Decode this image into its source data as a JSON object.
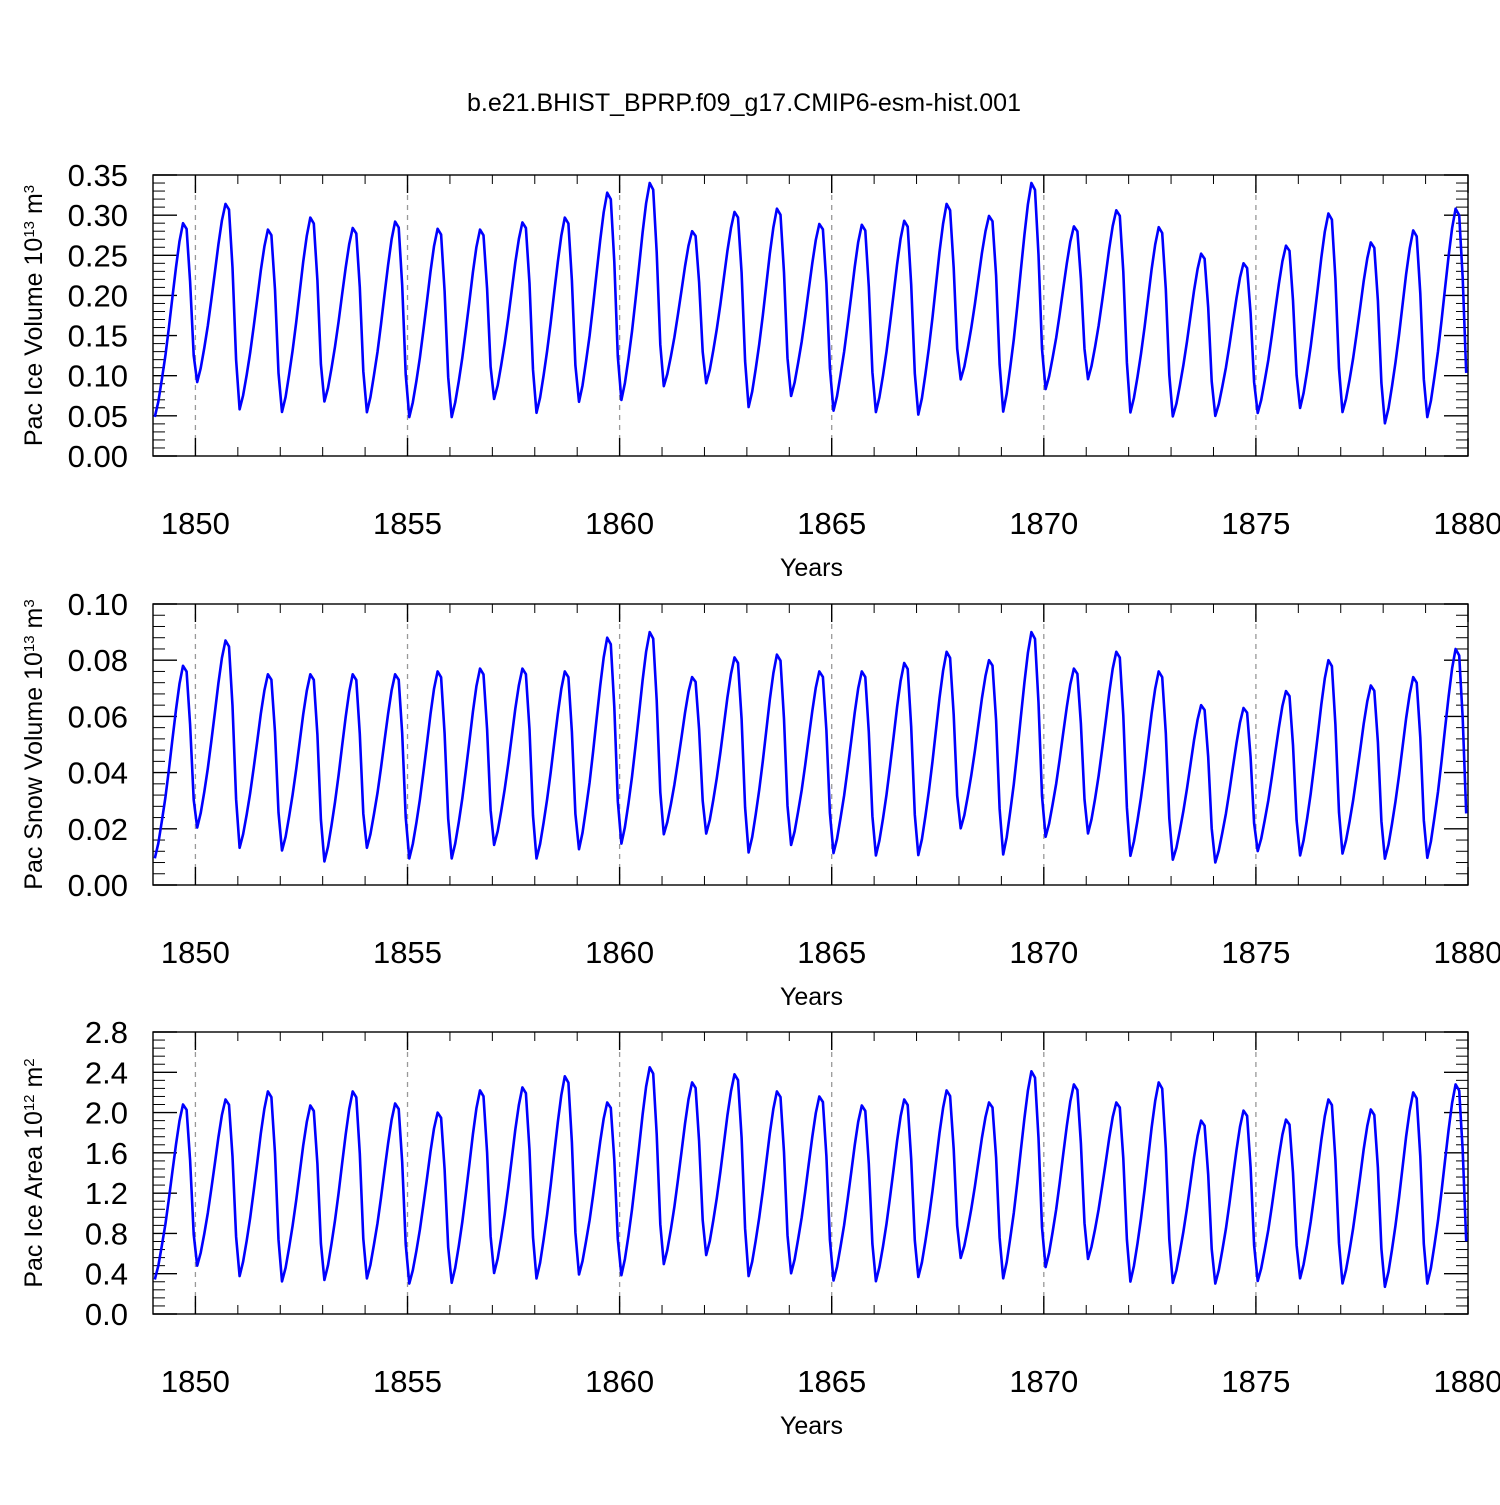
{
  "title": "b.e21.BHIST_BPRP.f09_g17.CMIP6-esm-hist.001",
  "colors": {
    "line": "#0000ff",
    "grid": "#999999",
    "axis": "#000000"
  },
  "chart_data": [
    {
      "type": "line",
      "title": "b.e21.BHIST_BPRP.f09_g17.CMIP6-esm-hist.001",
      "xlabel": "Years",
      "ylabel": {
        "prefix": "Pac Ice Volume 10",
        "exp": "13",
        "mid": " m",
        "unit_exp": "3"
      },
      "xlim": [
        1849,
        1880
      ],
      "x_ticks": [
        1850,
        1855,
        1860,
        1865,
        1870,
        1875,
        1880
      ],
      "x_tick_labels": [
        "1850",
        "1855",
        "1860",
        "1865",
        "1870",
        "1875",
        "1880"
      ],
      "ylim": [
        0,
        0.35
      ],
      "y_ticks": [
        0,
        0.05,
        0.1,
        0.15,
        0.2,
        0.25,
        0.3,
        0.35
      ],
      "y_tick_labels": [
        "0.00",
        "0.05",
        "0.10",
        "0.15",
        "0.20",
        "0.25",
        "0.30",
        "0.35"
      ],
      "grid": "vertical dashed at major x ticks",
      "series": [
        {
          "x_start": 1849,
          "step": "monthly",
          "peaks": [
            0.29,
            0.314,
            0.282,
            0.297,
            0.284,
            0.292,
            0.283,
            0.282,
            0.291,
            0.297,
            0.328,
            0.34,
            0.28,
            0.304,
            0.308,
            0.289,
            0.288,
            0.293,
            0.314,
            0.299,
            0.34,
            0.286,
            0.306,
            0.285,
            0.252,
            0.24,
            0.262,
            0.302,
            0.266,
            0.281,
            0.308
          ],
          "troughs": [
            0.04,
            0.084,
            0.05,
            0.046,
            0.06,
            0.046,
            0.04,
            0.04,
            0.063,
            0.045,
            0.058,
            0.06,
            0.08,
            0.083,
            0.052,
            0.067,
            0.048,
            0.046,
            0.042,
            0.088,
            0.045,
            0.076,
            0.088,
            0.046,
            0.042,
            0.043,
            0.046,
            0.051,
            0.047,
            0.032,
            0.039
          ]
        }
      ]
    },
    {
      "type": "line",
      "xlabel": "Years",
      "ylabel": {
        "prefix": "Pac Snow Volume 10",
        "exp": "13",
        "mid": " m",
        "unit_exp": "3"
      },
      "xlim": [
        1849,
        1880
      ],
      "x_ticks": [
        1850,
        1855,
        1860,
        1865,
        1870,
        1875,
        1880
      ],
      "x_tick_labels": [
        "1850",
        "1855",
        "1860",
        "1865",
        "1870",
        "1875",
        "1880"
      ],
      "ylim": [
        0,
        0.1
      ],
      "y_ticks": [
        0,
        0.02,
        0.04,
        0.06,
        0.08,
        0.1
      ],
      "y_tick_labels": [
        "0.00",
        "0.02",
        "0.04",
        "0.06",
        "0.08",
        "0.10"
      ],
      "grid": "vertical dashed at major x ticks",
      "series": [
        {
          "x_start": 1849,
          "step": "monthly",
          "peaks": [
            0.078,
            0.087,
            0.075,
            0.075,
            0.075,
            0.075,
            0.076,
            0.077,
            0.077,
            0.076,
            0.088,
            0.09,
            0.074,
            0.081,
            0.082,
            0.076,
            0.076,
            0.079,
            0.083,
            0.08,
            0.09,
            0.077,
            0.083,
            0.076,
            0.064,
            0.063,
            0.069,
            0.08,
            0.071,
            0.074,
            0.084
          ],
          "troughs": [
            0.007,
            0.018,
            0.011,
            0.01,
            0.006,
            0.011,
            0.007,
            0.007,
            0.012,
            0.007,
            0.01,
            0.012,
            0.016,
            0.016,
            0.009,
            0.012,
            0.009,
            0.008,
            0.008,
            0.018,
            0.008,
            0.015,
            0.016,
            0.008,
            0.007,
            0.006,
            0.01,
            0.008,
            0.009,
            0.007,
            0.007
          ]
        }
      ]
    },
    {
      "type": "line",
      "xlabel": "Years",
      "ylabel": {
        "prefix": "Pac Ice Area 10",
        "exp": "12",
        "mid": " m",
        "unit_exp": "2"
      },
      "xlim": [
        1849,
        1880
      ],
      "x_ticks": [
        1850,
        1855,
        1860,
        1865,
        1870,
        1875,
        1880
      ],
      "x_tick_labels": [
        "1850",
        "1855",
        "1860",
        "1865",
        "1870",
        "1875",
        "1880"
      ],
      "ylim": [
        0,
        2.8
      ],
      "y_ticks": [
        0,
        0.4,
        0.8,
        1.2,
        1.6,
        2.0,
        2.4,
        2.8
      ],
      "y_tick_labels": [
        "0.0",
        "0.4",
        "0.8",
        "1.2",
        "1.6",
        "2.0",
        "2.4",
        "2.8"
      ],
      "grid": "vertical dashed at major x ticks",
      "series": [
        {
          "x_start": 1849,
          "step": "monthly",
          "peaks": [
            2.08,
            2.13,
            2.21,
            2.07,
            2.21,
            2.09,
            2.0,
            2.22,
            2.25,
            2.36,
            2.1,
            2.45,
            2.3,
            2.38,
            2.21,
            2.16,
            2.07,
            2.13,
            2.22,
            2.1,
            2.41,
            2.28,
            2.1,
            2.3,
            1.92,
            2.02,
            1.93,
            2.13,
            2.03,
            2.2,
            2.28
          ],
          "troughs": [
            0.28,
            0.42,
            0.31,
            0.26,
            0.27,
            0.29,
            0.24,
            0.24,
            0.34,
            0.28,
            0.33,
            0.31,
            0.43,
            0.52,
            0.31,
            0.34,
            0.27,
            0.26,
            0.3,
            0.5,
            0.28,
            0.4,
            0.49,
            0.25,
            0.25,
            0.24,
            0.27,
            0.29,
            0.24,
            0.2,
            0.23
          ]
        }
      ]
    }
  ]
}
